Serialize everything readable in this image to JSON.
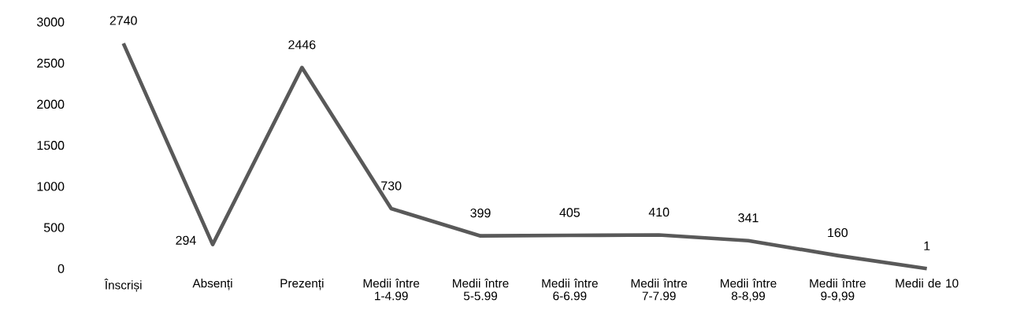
{
  "chart_data": {
    "type": "line",
    "categories": [
      "Înscriși",
      "Absenți",
      "Prezenți",
      "Medii între 1-4.99",
      "Medii între 5-5.99",
      "Medii între 6-6.99",
      "Medii între 7-7.99",
      "Medii între 8-8,99",
      "Medii între 9-9,99",
      "Medii de 10"
    ],
    "values": [
      2740,
      294,
      2446,
      730,
      399,
      405,
      410,
      341,
      160,
      1
    ],
    "color": "#595959",
    "ylim": [
      0,
      3000
    ],
    "yticks": [
      0,
      500,
      1000,
      1500,
      2000,
      2500,
      3000
    ],
    "data_labels": true,
    "marker": "none",
    "line_style": "solid"
  }
}
